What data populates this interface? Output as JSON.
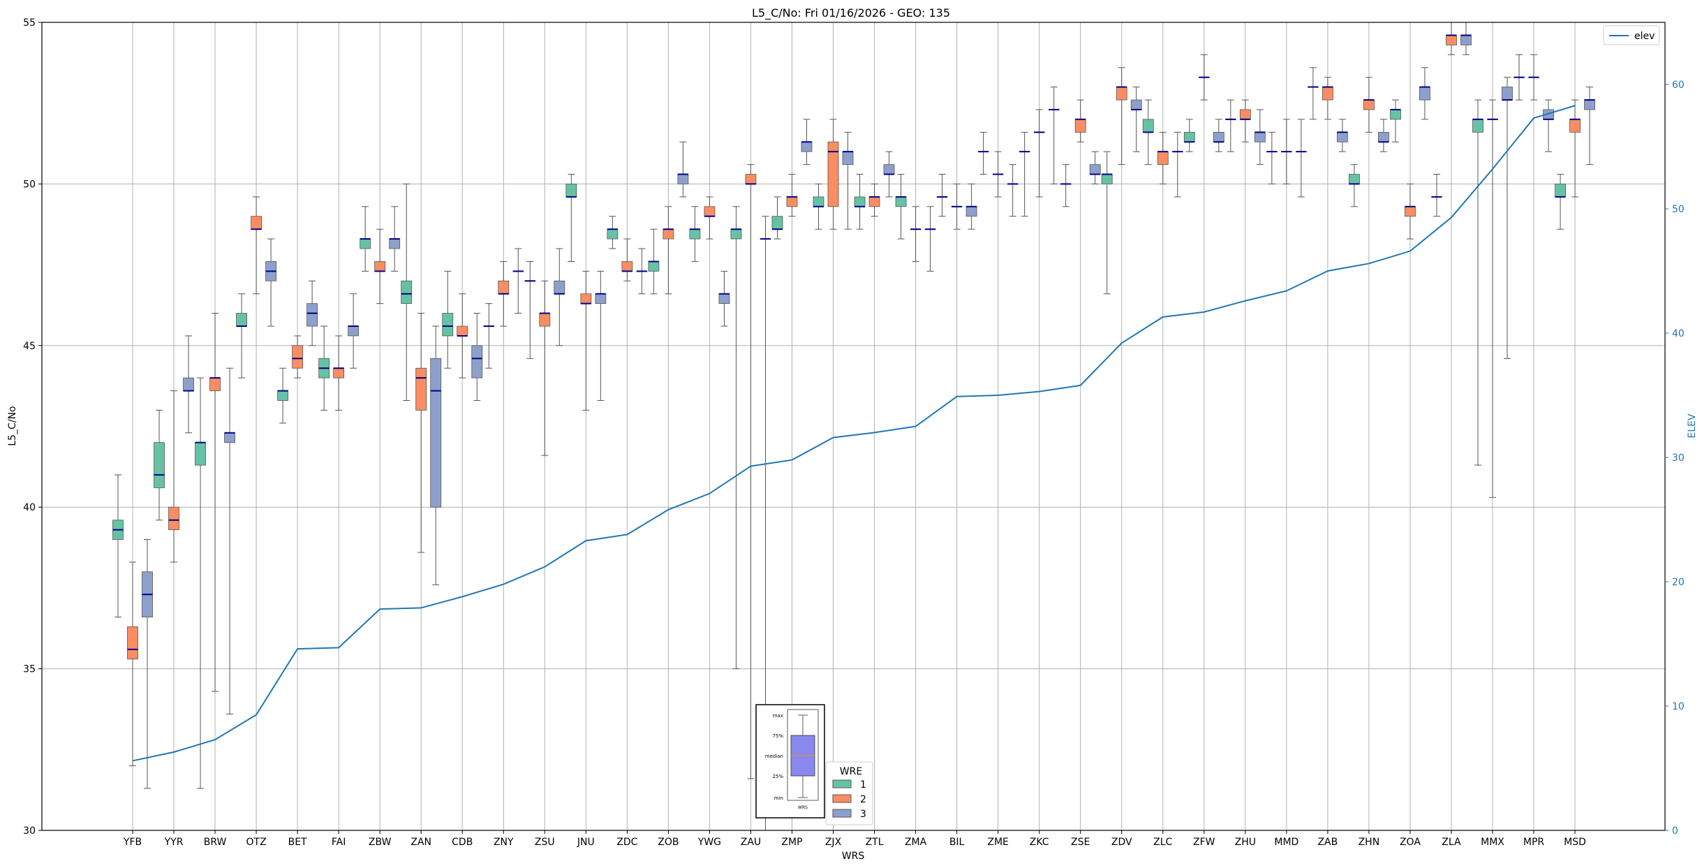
{
  "chart_data": {
    "type": "boxplot",
    "title": "L5_C/No: Fri 01/16/2026 - GEO: 135",
    "xlabel": "WRS",
    "ylabel": "L5_C/No",
    "ylabel_right": "ELEV",
    "ylim": [
      30,
      55
    ],
    "ylim_right": [
      0,
      65
    ],
    "yticks": [
      "30",
      "35",
      "40",
      "45",
      "50",
      "55"
    ],
    "yticks_right": [
      "0",
      "10",
      "20",
      "30",
      "40",
      "50",
      "60"
    ],
    "grid": true,
    "colors": {
      "1": "#66c2a5",
      "2": "#fc8d62",
      "3": "#8da0cb",
      "median": "#00008b",
      "elev": "#1f77b4",
      "whisker": "#555555"
    },
    "elev_legend": "elev",
    "legend": {
      "title": "WRE",
      "labels": [
        "1",
        "2",
        "3"
      ],
      "placement": "bottom-center"
    },
    "inset": {
      "labels": [
        "max",
        "75%",
        "median",
        "25%",
        "min"
      ],
      "xlabel": "WRS",
      "box_color": "#8888ee",
      "median_color": "#ff8c00"
    },
    "categories": [
      "YFB",
      "YYR",
      "BRW",
      "OTZ",
      "BET",
      "FAI",
      "ZBW",
      "ZAN",
      "CDB",
      "ZNY",
      "ZSU",
      "JNU",
      "ZDC",
      "ZOB",
      "YWG",
      "ZAU",
      "ZMP",
      "ZJX",
      "ZTL",
      "ZMA",
      "BIL",
      "ZME",
      "ZKC",
      "ZSE",
      "ZDV",
      "ZLC",
      "ZFW",
      "ZHU",
      "MMD",
      "ZAB",
      "ZHN",
      "ZOA",
      "ZLA",
      "MMX",
      "MPR",
      "MSD"
    ],
    "elev": [
      5.6,
      6.3,
      7.3,
      9.3,
      14.6,
      14.7,
      17.8,
      17.9,
      18.8,
      19.8,
      21.2,
      23.3,
      23.8,
      25.8,
      27.1,
      29.3,
      29.8,
      31.6,
      32.0,
      32.5,
      34.9,
      35.0,
      35.3,
      35.8,
      39.2,
      41.3,
      41.7,
      42.6,
      43.4,
      45.0,
      45.6,
      46.6,
      49.3,
      53.2,
      57.3,
      58.3
    ],
    "boxes": [
      {
        "wrs": "YFB",
        "wre": 1,
        "min": 36.6,
        "q1": 39.0,
        "med": 39.3,
        "q3": 39.6,
        "max": 41.0
      },
      {
        "wrs": "YFB",
        "wre": 2,
        "min": 32.0,
        "q1": 35.3,
        "med": 35.6,
        "q3": 36.3,
        "max": 38.3
      },
      {
        "wrs": "YFB",
        "wre": 3,
        "min": 31.3,
        "q1": 36.6,
        "med": 37.3,
        "q3": 38.0,
        "max": 39.0
      },
      {
        "wrs": "YYR",
        "wre": 1,
        "min": 39.6,
        "q1": 40.6,
        "med": 41.0,
        "q3": 42.0,
        "max": 43.0
      },
      {
        "wrs": "YYR",
        "wre": 2,
        "min": 38.3,
        "q1": 39.3,
        "med": 39.6,
        "q3": 40.0,
        "max": 43.6
      },
      {
        "wrs": "YYR",
        "wre": 3,
        "min": 42.3,
        "q1": 43.6,
        "med": 43.6,
        "q3": 44.0,
        "max": 45.3
      },
      {
        "wrs": "BRW",
        "wre": 1,
        "min": 31.3,
        "q1": 41.3,
        "med": 42.0,
        "q3": 42.0,
        "max": 44.0
      },
      {
        "wrs": "BRW",
        "wre": 2,
        "min": 34.3,
        "q1": 43.6,
        "med": 44.0,
        "q3": 44.0,
        "max": 46.0
      },
      {
        "wrs": "BRW",
        "wre": 3,
        "min": 33.6,
        "q1": 42.0,
        "med": 42.3,
        "q3": 42.3,
        "max": 44.3
      },
      {
        "wrs": "OTZ",
        "wre": 1,
        "min": 44.0,
        "q1": 45.6,
        "med": 45.6,
        "q3": 46.0,
        "max": 46.6
      },
      {
        "wrs": "OTZ",
        "wre": 2,
        "min": 46.6,
        "q1": 48.6,
        "med": 48.6,
        "q3": 49.0,
        "max": 49.6
      },
      {
        "wrs": "OTZ",
        "wre": 3,
        "min": 45.6,
        "q1": 47.0,
        "med": 47.3,
        "q3": 47.6,
        "max": 48.3
      },
      {
        "wrs": "BET",
        "wre": 1,
        "min": 42.6,
        "q1": 43.3,
        "med": 43.6,
        "q3": 43.6,
        "max": 44.3
      },
      {
        "wrs": "BET",
        "wre": 2,
        "min": 44.0,
        "q1": 44.3,
        "med": 44.6,
        "q3": 45.0,
        "max": 45.3
      },
      {
        "wrs": "BET",
        "wre": 3,
        "min": 45.0,
        "q1": 45.6,
        "med": 46.0,
        "q3": 46.3,
        "max": 47.0
      },
      {
        "wrs": "FAI",
        "wre": 1,
        "min": 43.0,
        "q1": 44.0,
        "med": 44.3,
        "q3": 44.6,
        "max": 45.6
      },
      {
        "wrs": "FAI",
        "wre": 2,
        "min": 43.0,
        "q1": 44.0,
        "med": 44.3,
        "q3": 44.3,
        "max": 45.3
      },
      {
        "wrs": "FAI",
        "wre": 3,
        "min": 44.3,
        "q1": 45.3,
        "med": 45.6,
        "q3": 45.6,
        "max": 46.6
      },
      {
        "wrs": "ZBW",
        "wre": 1,
        "min": 47.3,
        "q1": 48.0,
        "med": 48.3,
        "q3": 48.3,
        "max": 49.3
      },
      {
        "wrs": "ZBW",
        "wre": 2,
        "min": 46.3,
        "q1": 47.3,
        "med": 47.3,
        "q3": 47.6,
        "max": 48.6
      },
      {
        "wrs": "ZBW",
        "wre": 3,
        "min": 47.3,
        "q1": 48.0,
        "med": 48.3,
        "q3": 48.3,
        "max": 49.3
      },
      {
        "wrs": "ZAN",
        "wre": 1,
        "min": 43.3,
        "q1": 46.3,
        "med": 46.6,
        "q3": 47.0,
        "max": 50.0
      },
      {
        "wrs": "ZAN",
        "wre": 2,
        "min": 38.6,
        "q1": 43.0,
        "med": 44.0,
        "q3": 44.3,
        "max": 46.0
      },
      {
        "wrs": "ZAN",
        "wre": 3,
        "min": 37.6,
        "q1": 40.0,
        "med": 43.6,
        "q3": 44.6,
        "max": 45.6
      },
      {
        "wrs": "CDB",
        "wre": 1,
        "min": 44.3,
        "q1": 45.3,
        "med": 45.6,
        "q3": 46.0,
        "max": 47.3
      },
      {
        "wrs": "CDB",
        "wre": 2,
        "min": 44.0,
        "q1": 45.3,
        "med": 45.3,
        "q3": 45.6,
        "max": 46.6
      },
      {
        "wrs": "CDB",
        "wre": 3,
        "min": 43.3,
        "q1": 44.0,
        "med": 44.6,
        "q3": 45.0,
        "max": 46.0
      },
      {
        "wrs": "ZNY",
        "wre": 1,
        "min": 44.3,
        "q1": 45.6,
        "med": 45.6,
        "q3": 45.6,
        "max": 46.3
      },
      {
        "wrs": "ZNY",
        "wre": 2,
        "min": 45.6,
        "q1": 46.6,
        "med": 46.6,
        "q3": 47.0,
        "max": 47.6
      },
      {
        "wrs": "ZNY",
        "wre": 3,
        "min": 46.0,
        "q1": 47.3,
        "med": 47.3,
        "q3": 47.3,
        "max": 48.0
      },
      {
        "wrs": "ZSU",
        "wre": 1,
        "min": 44.6,
        "q1": 47.0,
        "med": 47.0,
        "q3": 47.0,
        "max": 47.6
      },
      {
        "wrs": "ZSU",
        "wre": 2,
        "min": 41.6,
        "q1": 45.6,
        "med": 46.0,
        "q3": 46.0,
        "max": 47.0
      },
      {
        "wrs": "ZSU",
        "wre": 3,
        "min": 45.0,
        "q1": 46.6,
        "med": 46.6,
        "q3": 47.0,
        "max": 48.0
      },
      {
        "wrs": "JNU",
        "wre": 1,
        "min": 47.6,
        "q1": 49.6,
        "med": 49.6,
        "q3": 50.0,
        "max": 50.3
      },
      {
        "wrs": "JNU",
        "wre": 2,
        "min": 43.0,
        "q1": 46.3,
        "med": 46.3,
        "q3": 46.6,
        "max": 47.3
      },
      {
        "wrs": "JNU",
        "wre": 3,
        "min": 43.3,
        "q1": 46.3,
        "med": 46.6,
        "q3": 46.6,
        "max": 47.3
      },
      {
        "wrs": "ZDC",
        "wre": 1,
        "min": 48.0,
        "q1": 48.3,
        "med": 48.6,
        "q3": 48.6,
        "max": 49.0
      },
      {
        "wrs": "ZDC",
        "wre": 2,
        "min": 47.0,
        "q1": 47.3,
        "med": 47.3,
        "q3": 47.6,
        "max": 48.3
      },
      {
        "wrs": "ZDC",
        "wre": 3,
        "min": 46.6,
        "q1": 47.3,
        "med": 47.3,
        "q3": 47.3,
        "max": 48.0
      },
      {
        "wrs": "ZOB",
        "wre": 1,
        "min": 46.6,
        "q1": 47.3,
        "med": 47.6,
        "q3": 47.6,
        "max": 48.6
      },
      {
        "wrs": "ZOB",
        "wre": 2,
        "min": 46.6,
        "q1": 48.3,
        "med": 48.6,
        "q3": 48.6,
        "max": 49.3
      },
      {
        "wrs": "ZOB",
        "wre": 3,
        "min": 49.6,
        "q1": 50.0,
        "med": 50.3,
        "q3": 50.3,
        "max": 51.3
      },
      {
        "wrs": "YWG",
        "wre": 1,
        "min": 47.6,
        "q1": 48.3,
        "med": 48.6,
        "q3": 48.6,
        "max": 49.3
      },
      {
        "wrs": "YWG",
        "wre": 2,
        "min": 48.3,
        "q1": 49.0,
        "med": 49.0,
        "q3": 49.3,
        "max": 49.6
      },
      {
        "wrs": "YWG",
        "wre": 3,
        "min": 45.6,
        "q1": 46.3,
        "med": 46.6,
        "q3": 46.6,
        "max": 47.3
      },
      {
        "wrs": "ZAU",
        "wre": 1,
        "min": 35.0,
        "q1": 48.3,
        "med": 48.6,
        "q3": 48.6,
        "max": 49.3
      },
      {
        "wrs": "ZAU",
        "wre": 2,
        "min": 31.6,
        "q1": 50.0,
        "med": 50.0,
        "q3": 50.3,
        "max": 50.6
      },
      {
        "wrs": "ZAU",
        "wre": 3,
        "min": 30.0,
        "q1": 48.3,
        "med": 48.3,
        "q3": 48.3,
        "max": 49.0
      },
      {
        "wrs": "ZMP",
        "wre": 1,
        "min": 48.3,
        "q1": 48.6,
        "med": 48.6,
        "q3": 49.0,
        "max": 49.6
      },
      {
        "wrs": "ZMP",
        "wre": 2,
        "min": 49.0,
        "q1": 49.3,
        "med": 49.6,
        "q3": 49.6,
        "max": 50.3
      },
      {
        "wrs": "ZMP",
        "wre": 3,
        "min": 50.6,
        "q1": 51.0,
        "med": 51.3,
        "q3": 51.3,
        "max": 52.0
      },
      {
        "wrs": "ZJX",
        "wre": 1,
        "min": 48.6,
        "q1": 49.3,
        "med": 49.3,
        "q3": 49.6,
        "max": 50.0
      },
      {
        "wrs": "ZJX",
        "wre": 2,
        "min": 48.6,
        "q1": 49.3,
        "med": 51.0,
        "q3": 51.3,
        "max": 52.0
      },
      {
        "wrs": "ZJX",
        "wre": 3,
        "min": 48.6,
        "q1": 50.6,
        "med": 51.0,
        "q3": 51.0,
        "max": 51.6
      },
      {
        "wrs": "ZTL",
        "wre": 1,
        "min": 48.6,
        "q1": 49.3,
        "med": 49.3,
        "q3": 49.6,
        "max": 50.3
      },
      {
        "wrs": "ZTL",
        "wre": 2,
        "min": 49.0,
        "q1": 49.3,
        "med": 49.6,
        "q3": 49.6,
        "max": 50.0
      },
      {
        "wrs": "ZTL",
        "wre": 3,
        "min": 49.6,
        "q1": 50.3,
        "med": 50.3,
        "q3": 50.6,
        "max": 51.0
      },
      {
        "wrs": "ZMA",
        "wre": 1,
        "min": 48.3,
        "q1": 49.3,
        "med": 49.6,
        "q3": 49.6,
        "max": 50.3
      },
      {
        "wrs": "ZMA",
        "wre": 2,
        "min": 47.6,
        "q1": 48.6,
        "med": 48.6,
        "q3": 48.6,
        "max": 49.3
      },
      {
        "wrs": "ZMA",
        "wre": 3,
        "min": 47.3,
        "q1": 48.6,
        "med": 48.6,
        "q3": 48.6,
        "max": 49.3
      },
      {
        "wrs": "BIL",
        "wre": 1,
        "min": 49.0,
        "q1": 49.6,
        "med": 49.6,
        "q3": 49.6,
        "max": 50.3
      },
      {
        "wrs": "BIL",
        "wre": 2,
        "min": 48.6,
        "q1": 49.3,
        "med": 49.3,
        "q3": 49.3,
        "max": 50.0
      },
      {
        "wrs": "BIL",
        "wre": 3,
        "min": 48.6,
        "q1": 49.0,
        "med": 49.3,
        "q3": 49.3,
        "max": 50.0
      },
      {
        "wrs": "ZME",
        "wre": 1,
        "min": 50.3,
        "q1": 51.0,
        "med": 51.0,
        "q3": 51.0,
        "max": 51.6
      },
      {
        "wrs": "ZME",
        "wre": 2,
        "min": 49.6,
        "q1": 50.3,
        "med": 50.3,
        "q3": 50.3,
        "max": 51.0
      },
      {
        "wrs": "ZME",
        "wre": 3,
        "min": 49.0,
        "q1": 50.0,
        "med": 50.0,
        "q3": 50.0,
        "max": 50.6
      },
      {
        "wrs": "ZKC",
        "wre": 1,
        "min": 49.0,
        "q1": 51.0,
        "med": 51.0,
        "q3": 51.0,
        "max": 51.6
      },
      {
        "wrs": "ZKC",
        "wre": 2,
        "min": 49.6,
        "q1": 51.6,
        "med": 51.6,
        "q3": 51.6,
        "max": 52.3
      },
      {
        "wrs": "ZKC",
        "wre": 3,
        "min": 50.0,
        "q1": 52.3,
        "med": 52.3,
        "q3": 52.3,
        "max": 53.0
      },
      {
        "wrs": "ZSE",
        "wre": 1,
        "min": 49.3,
        "q1": 50.0,
        "med": 50.0,
        "q3": 50.0,
        "max": 50.6
      },
      {
        "wrs": "ZSE",
        "wre": 2,
        "min": 51.3,
        "q1": 51.6,
        "med": 52.0,
        "q3": 52.0,
        "max": 52.6
      },
      {
        "wrs": "ZSE",
        "wre": 3,
        "min": 50.0,
        "q1": 50.3,
        "med": 50.3,
        "q3": 50.6,
        "max": 51.0
      },
      {
        "wrs": "ZDV",
        "wre": 1,
        "min": 46.6,
        "q1": 50.0,
        "med": 50.3,
        "q3": 50.3,
        "max": 51.0
      },
      {
        "wrs": "ZDV",
        "wre": 2,
        "min": 50.6,
        "q1": 52.6,
        "med": 53.0,
        "q3": 53.0,
        "max": 53.6
      },
      {
        "wrs": "ZDV",
        "wre": 3,
        "min": 51.0,
        "q1": 52.3,
        "med": 52.3,
        "q3": 52.6,
        "max": 53.0
      },
      {
        "wrs": "ZLC",
        "wre": 1,
        "min": 50.6,
        "q1": 51.6,
        "med": 51.6,
        "q3": 52.0,
        "max": 52.6
      },
      {
        "wrs": "ZLC",
        "wre": 2,
        "min": 50.0,
        "q1": 50.6,
        "med": 51.0,
        "q3": 51.0,
        "max": 51.6
      },
      {
        "wrs": "ZLC",
        "wre": 3,
        "min": 49.6,
        "q1": 51.0,
        "med": 51.0,
        "q3": 51.0,
        "max": 51.6
      },
      {
        "wrs": "ZFW",
        "wre": 1,
        "min": 51.0,
        "q1": 51.3,
        "med": 51.3,
        "q3": 51.6,
        "max": 52.0
      },
      {
        "wrs": "ZFW",
        "wre": 2,
        "min": 52.6,
        "q1": 53.3,
        "med": 53.3,
        "q3": 53.3,
        "max": 54.0
      },
      {
        "wrs": "ZFW",
        "wre": 3,
        "min": 51.0,
        "q1": 51.3,
        "med": 51.3,
        "q3": 51.6,
        "max": 52.0
      },
      {
        "wrs": "ZHU",
        "wre": 1,
        "min": 51.0,
        "q1": 52.0,
        "med": 52.0,
        "q3": 52.0,
        "max": 52.6
      },
      {
        "wrs": "ZHU",
        "wre": 2,
        "min": 51.3,
        "q1": 52.0,
        "med": 52.0,
        "q3": 52.3,
        "max": 52.6
      },
      {
        "wrs": "ZHU",
        "wre": 3,
        "min": 50.6,
        "q1": 51.3,
        "med": 51.6,
        "q3": 51.6,
        "max": 52.3
      },
      {
        "wrs": "MMD",
        "wre": 1,
        "min": 50.0,
        "q1": 51.0,
        "med": 51.0,
        "q3": 51.0,
        "max": 51.6
      },
      {
        "wrs": "MMD",
        "wre": 2,
        "min": 50.0,
        "q1": 51.0,
        "med": 51.0,
        "q3": 51.0,
        "max": 52.0
      },
      {
        "wrs": "MMD",
        "wre": 3,
        "min": 49.6,
        "q1": 51.0,
        "med": 51.0,
        "q3": 51.0,
        "max": 52.0
      },
      {
        "wrs": "ZAB",
        "wre": 1,
        "min": 52.0,
        "q1": 53.0,
        "med": 53.0,
        "q3": 53.0,
        "max": 53.6
      },
      {
        "wrs": "ZAB",
        "wre": 2,
        "min": 52.0,
        "q1": 52.6,
        "med": 53.0,
        "q3": 53.0,
        "max": 53.3
      },
      {
        "wrs": "ZAB",
        "wre": 3,
        "min": 51.0,
        "q1": 51.3,
        "med": 51.6,
        "q3": 51.6,
        "max": 52.0
      },
      {
        "wrs": "ZHN",
        "wre": 1,
        "min": 49.3,
        "q1": 50.0,
        "med": 50.0,
        "q3": 50.3,
        "max": 50.6
      },
      {
        "wrs": "ZHN",
        "wre": 2,
        "min": 51.6,
        "q1": 52.3,
        "med": 52.6,
        "q3": 52.6,
        "max": 53.3
      },
      {
        "wrs": "ZHN",
        "wre": 3,
        "min": 51.0,
        "q1": 51.3,
        "med": 51.3,
        "q3": 51.6,
        "max": 52.0
      },
      {
        "wrs": "ZOA",
        "wre": 1,
        "min": 51.3,
        "q1": 52.0,
        "med": 52.3,
        "q3": 52.3,
        "max": 52.6
      },
      {
        "wrs": "ZOA",
        "wre": 2,
        "min": 48.3,
        "q1": 49.0,
        "med": 49.3,
        "q3": 49.3,
        "max": 50.0
      },
      {
        "wrs": "ZOA",
        "wre": 3,
        "min": 52.0,
        "q1": 52.6,
        "med": 53.0,
        "q3": 53.0,
        "max": 53.6
      },
      {
        "wrs": "ZLA",
        "wre": 1,
        "min": 49.0,
        "q1": 49.6,
        "med": 49.6,
        "q3": 49.6,
        "max": 50.3
      },
      {
        "wrs": "ZLA",
        "wre": 2,
        "min": 54.0,
        "q1": 54.3,
        "med": 54.6,
        "q3": 54.6,
        "max": 55.0
      },
      {
        "wrs": "ZLA",
        "wre": 3,
        "min": 54.0,
        "q1": 54.3,
        "med": 54.6,
        "q3": 54.6,
        "max": 55.0
      },
      {
        "wrs": "MMX",
        "wre": 1,
        "min": 41.3,
        "q1": 51.6,
        "med": 52.0,
        "q3": 52.0,
        "max": 52.6
      },
      {
        "wrs": "MMX",
        "wre": 2,
        "min": 40.3,
        "q1": 52.0,
        "med": 52.0,
        "q3": 52.0,
        "max": 52.6
      },
      {
        "wrs": "MMX",
        "wre": 3,
        "min": 44.6,
        "q1": 52.6,
        "med": 52.6,
        "q3": 53.0,
        "max": 53.3
      },
      {
        "wrs": "MPR",
        "wre": 1,
        "min": 52.6,
        "q1": 53.3,
        "med": 53.3,
        "q3": 53.3,
        "max": 54.0
      },
      {
        "wrs": "MPR",
        "wre": 2,
        "min": 52.6,
        "q1": 53.3,
        "med": 53.3,
        "q3": 53.3,
        "max": 54.0
      },
      {
        "wrs": "MPR",
        "wre": 3,
        "min": 51.0,
        "q1": 52.0,
        "med": 52.0,
        "q3": 52.3,
        "max": 52.6
      },
      {
        "wrs": "MSD",
        "wre": 1,
        "min": 48.6,
        "q1": 49.6,
        "med": 49.6,
        "q3": 50.0,
        "max": 50.3
      },
      {
        "wrs": "MSD",
        "wre": 2,
        "min": 49.6,
        "q1": 51.6,
        "med": 52.0,
        "q3": 52.0,
        "max": 52.6
      },
      {
        "wrs": "MSD",
        "wre": 3,
        "min": 50.6,
        "q1": 52.3,
        "med": 52.6,
        "q3": 52.6,
        "max": 53.0
      }
    ]
  }
}
